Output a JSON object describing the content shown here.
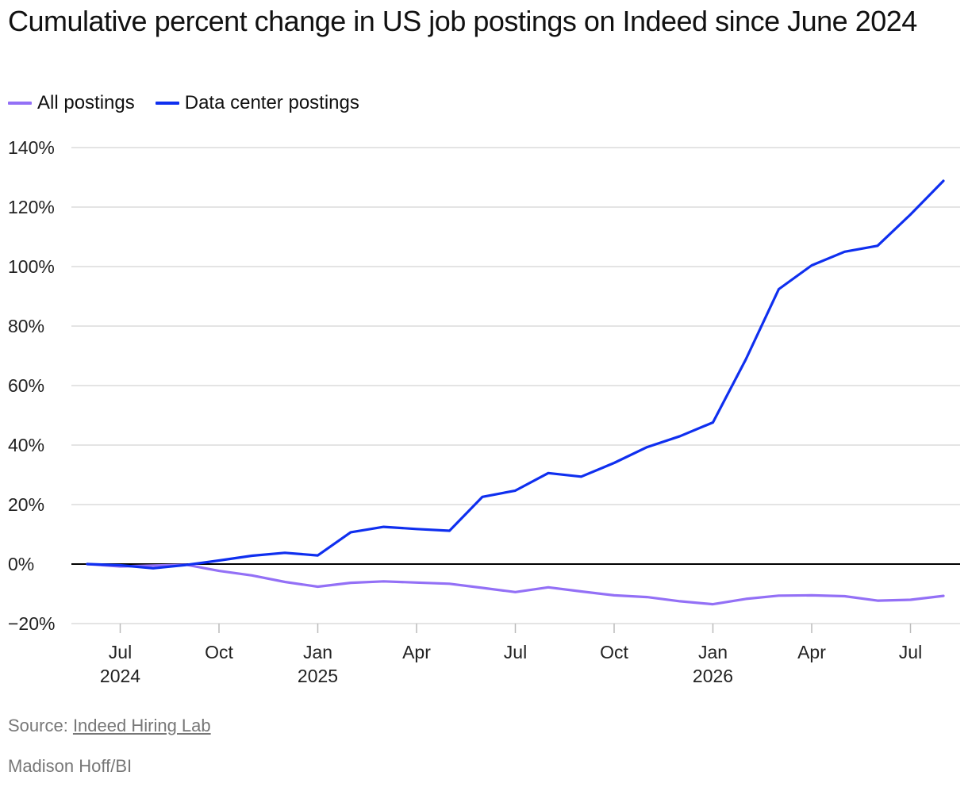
{
  "chart_data": {
    "type": "line",
    "title": "Cumulative percent change in US job postings on Indeed since June 2024",
    "ylim": [
      -20,
      140
    ],
    "y_ticks": [
      140,
      120,
      100,
      80,
      60,
      40,
      20,
      0,
      -20
    ],
    "y_tick_labels": [
      "140%",
      "120%",
      "100%",
      "80%",
      "60%",
      "40%",
      "20%",
      "0%",
      "−20%"
    ],
    "x": [
      "2024-06",
      "2024-07",
      "2024-08",
      "2024-09",
      "2024-10",
      "2024-11",
      "2024-12",
      "2025-01",
      "2025-02",
      "2025-03",
      "2025-04",
      "2025-05",
      "2025-06",
      "2025-07",
      "2025-08",
      "2025-09",
      "2025-10",
      "2025-11",
      "2025-12",
      "2026-01",
      "2026-02",
      "2026-03",
      "2026-04",
      "2026-05",
      "2026-06",
      "2026-07",
      "2026-08"
    ],
    "x_ticks": [
      {
        "date": "2024-07",
        "month": "Jul",
        "year": "2024"
      },
      {
        "date": "2024-10",
        "month": "Oct",
        "year": ""
      },
      {
        "date": "2025-01",
        "month": "Jan",
        "year": "2025"
      },
      {
        "date": "2025-04",
        "month": "Apr",
        "year": ""
      },
      {
        "date": "2025-07",
        "month": "Jul",
        "year": ""
      },
      {
        "date": "2025-10",
        "month": "Oct",
        "year": ""
      },
      {
        "date": "2026-01",
        "month": "Jan",
        "year": "2026"
      },
      {
        "date": "2026-04",
        "month": "Apr",
        "year": ""
      },
      {
        "date": "2026-07",
        "month": "Jul",
        "year": ""
      }
    ],
    "grid": true,
    "legend_position": "top-left",
    "series": [
      {
        "name": "All postings",
        "color": "#9370f6",
        "values": [
          0,
          -0.8,
          -0.5,
          -0.2,
          -2.3,
          -3.8,
          -6.0,
          -7.6,
          -6.3,
          -5.8,
          -6.2,
          -6.6,
          -8.0,
          -9.4,
          -7.8,
          -9.2,
          -10.5,
          -11.1,
          -12.5,
          -13.5,
          -11.7,
          -10.6,
          -10.5,
          -10.8,
          -12.3,
          -12.0,
          -10.7
        ]
      },
      {
        "name": "Data center postings",
        "color": "#0f2fef",
        "values": [
          0,
          -0.4,
          -1.4,
          -0.3,
          1.2,
          2.8,
          3.8,
          2.9,
          10.7,
          12.5,
          11.8,
          11.2,
          22.6,
          24.7,
          30.6,
          29.4,
          34.0,
          39.3,
          43.0,
          47.6,
          68.8,
          92.4,
          100.4,
          105.0,
          107.0,
          117.5,
          128.8
        ]
      }
    ]
  },
  "footer": {
    "source_prefix": "Source: ",
    "source_link": "Indeed Hiring Lab",
    "credit": "Madison Hoff/BI"
  }
}
